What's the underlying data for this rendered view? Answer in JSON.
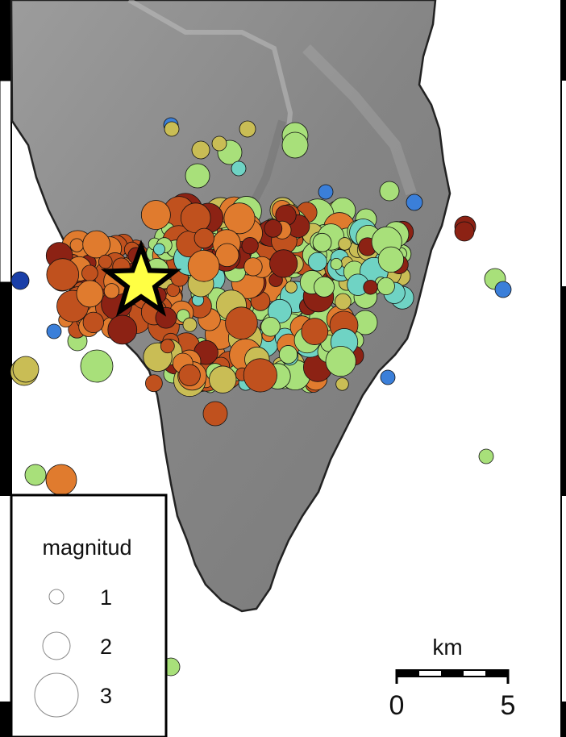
{
  "legend": {
    "title": "magnitud",
    "items": [
      {
        "label": "1",
        "magnitude": 1
      },
      {
        "label": "2",
        "magnitude": 2
      },
      {
        "label": "3",
        "magnitude": 3
      }
    ]
  },
  "scale_bar": {
    "unit_label": "km",
    "start_label": "0",
    "end_label": "5",
    "length_km": 5
  },
  "colors": {
    "sea": "#ffffff",
    "land": "#8a8a8a",
    "depth_deep": "#1a3fa8",
    "depth_blue": "#3b7fd9",
    "depth_cyan": "#6fd3c4",
    "depth_green": "#a8e07a",
    "depth_yellow": "#c9bd55",
    "depth_orange": "#e07b2e",
    "depth_red": "#c0511e",
    "depth_darkred": "#8c2214",
    "star": "#ffff44"
  },
  "main_shock": {
    "marker": "star-icon"
  }
}
